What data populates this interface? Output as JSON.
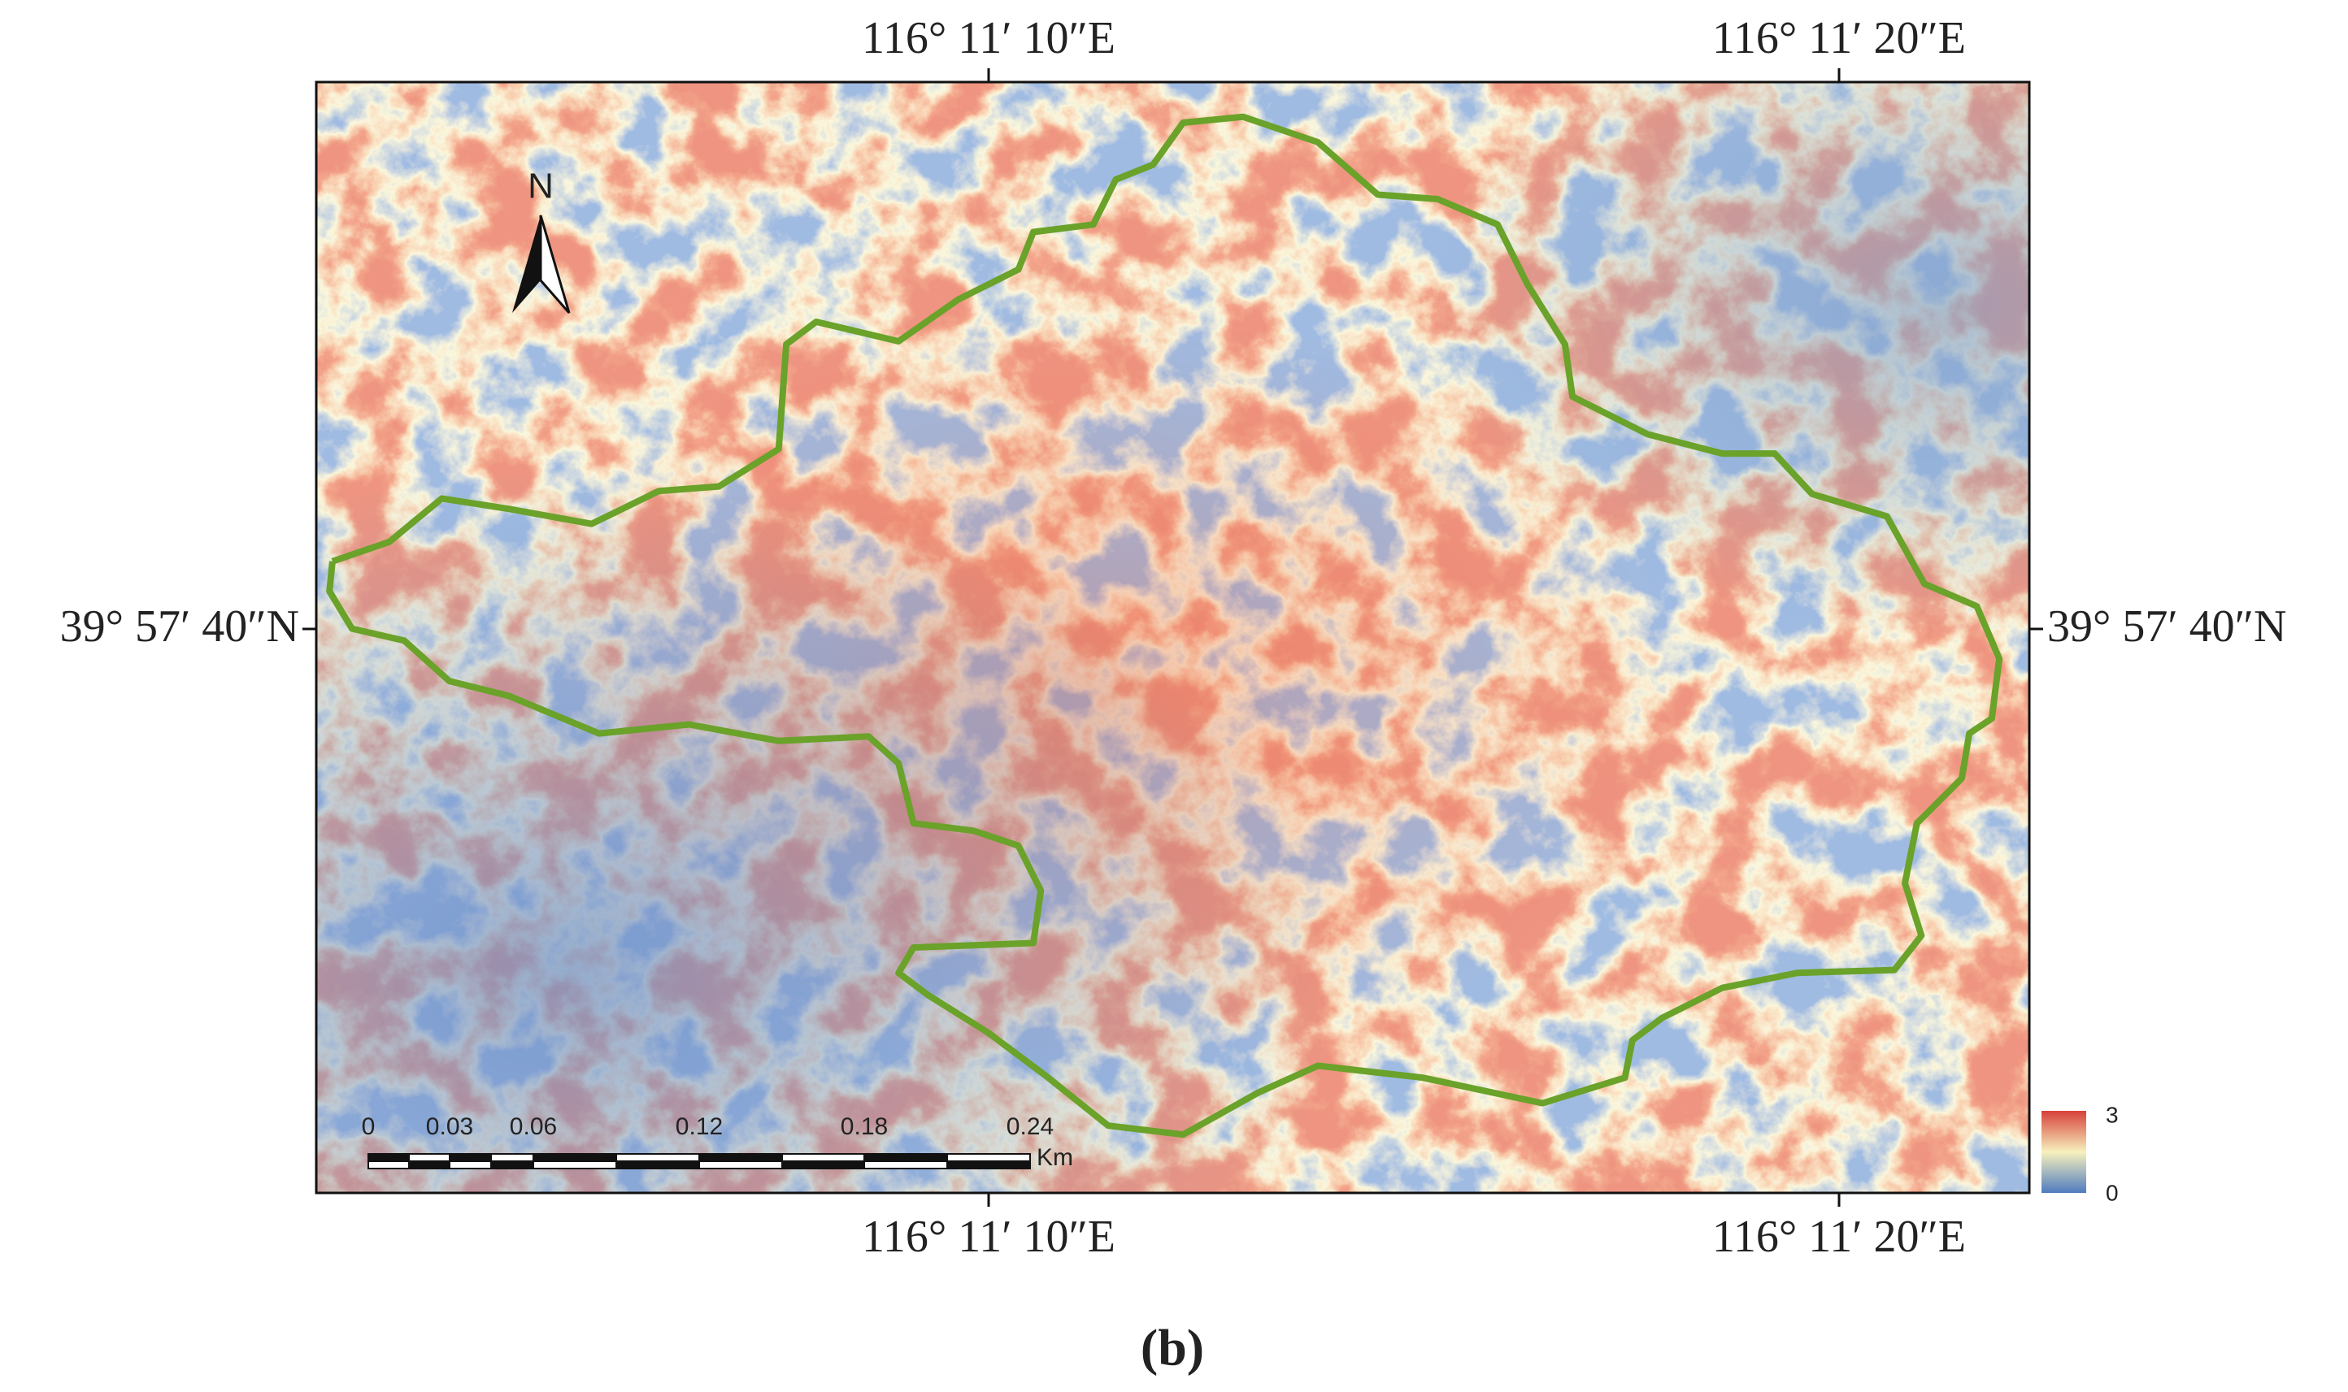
{
  "map": {
    "longitude_labels_top": [
      "116° 11′ 10″E",
      "116° 11′ 20″E"
    ],
    "longitude_labels_bottom": [
      "116° 11′ 10″E",
      "116° 11′ 20″E"
    ],
    "latitude_label_left": "39° 57′ 40″N",
    "latitude_label_right": "39° 57′ 40″N",
    "north_arrow": "N",
    "scale_bar": {
      "labels": [
        "0",
        "0.03",
        "0.06",
        "0.12",
        "0.18",
        "0.24"
      ],
      "unit": "Km"
    },
    "legend": {
      "max": "3",
      "min": "0"
    },
    "caption": "(b)"
  }
}
